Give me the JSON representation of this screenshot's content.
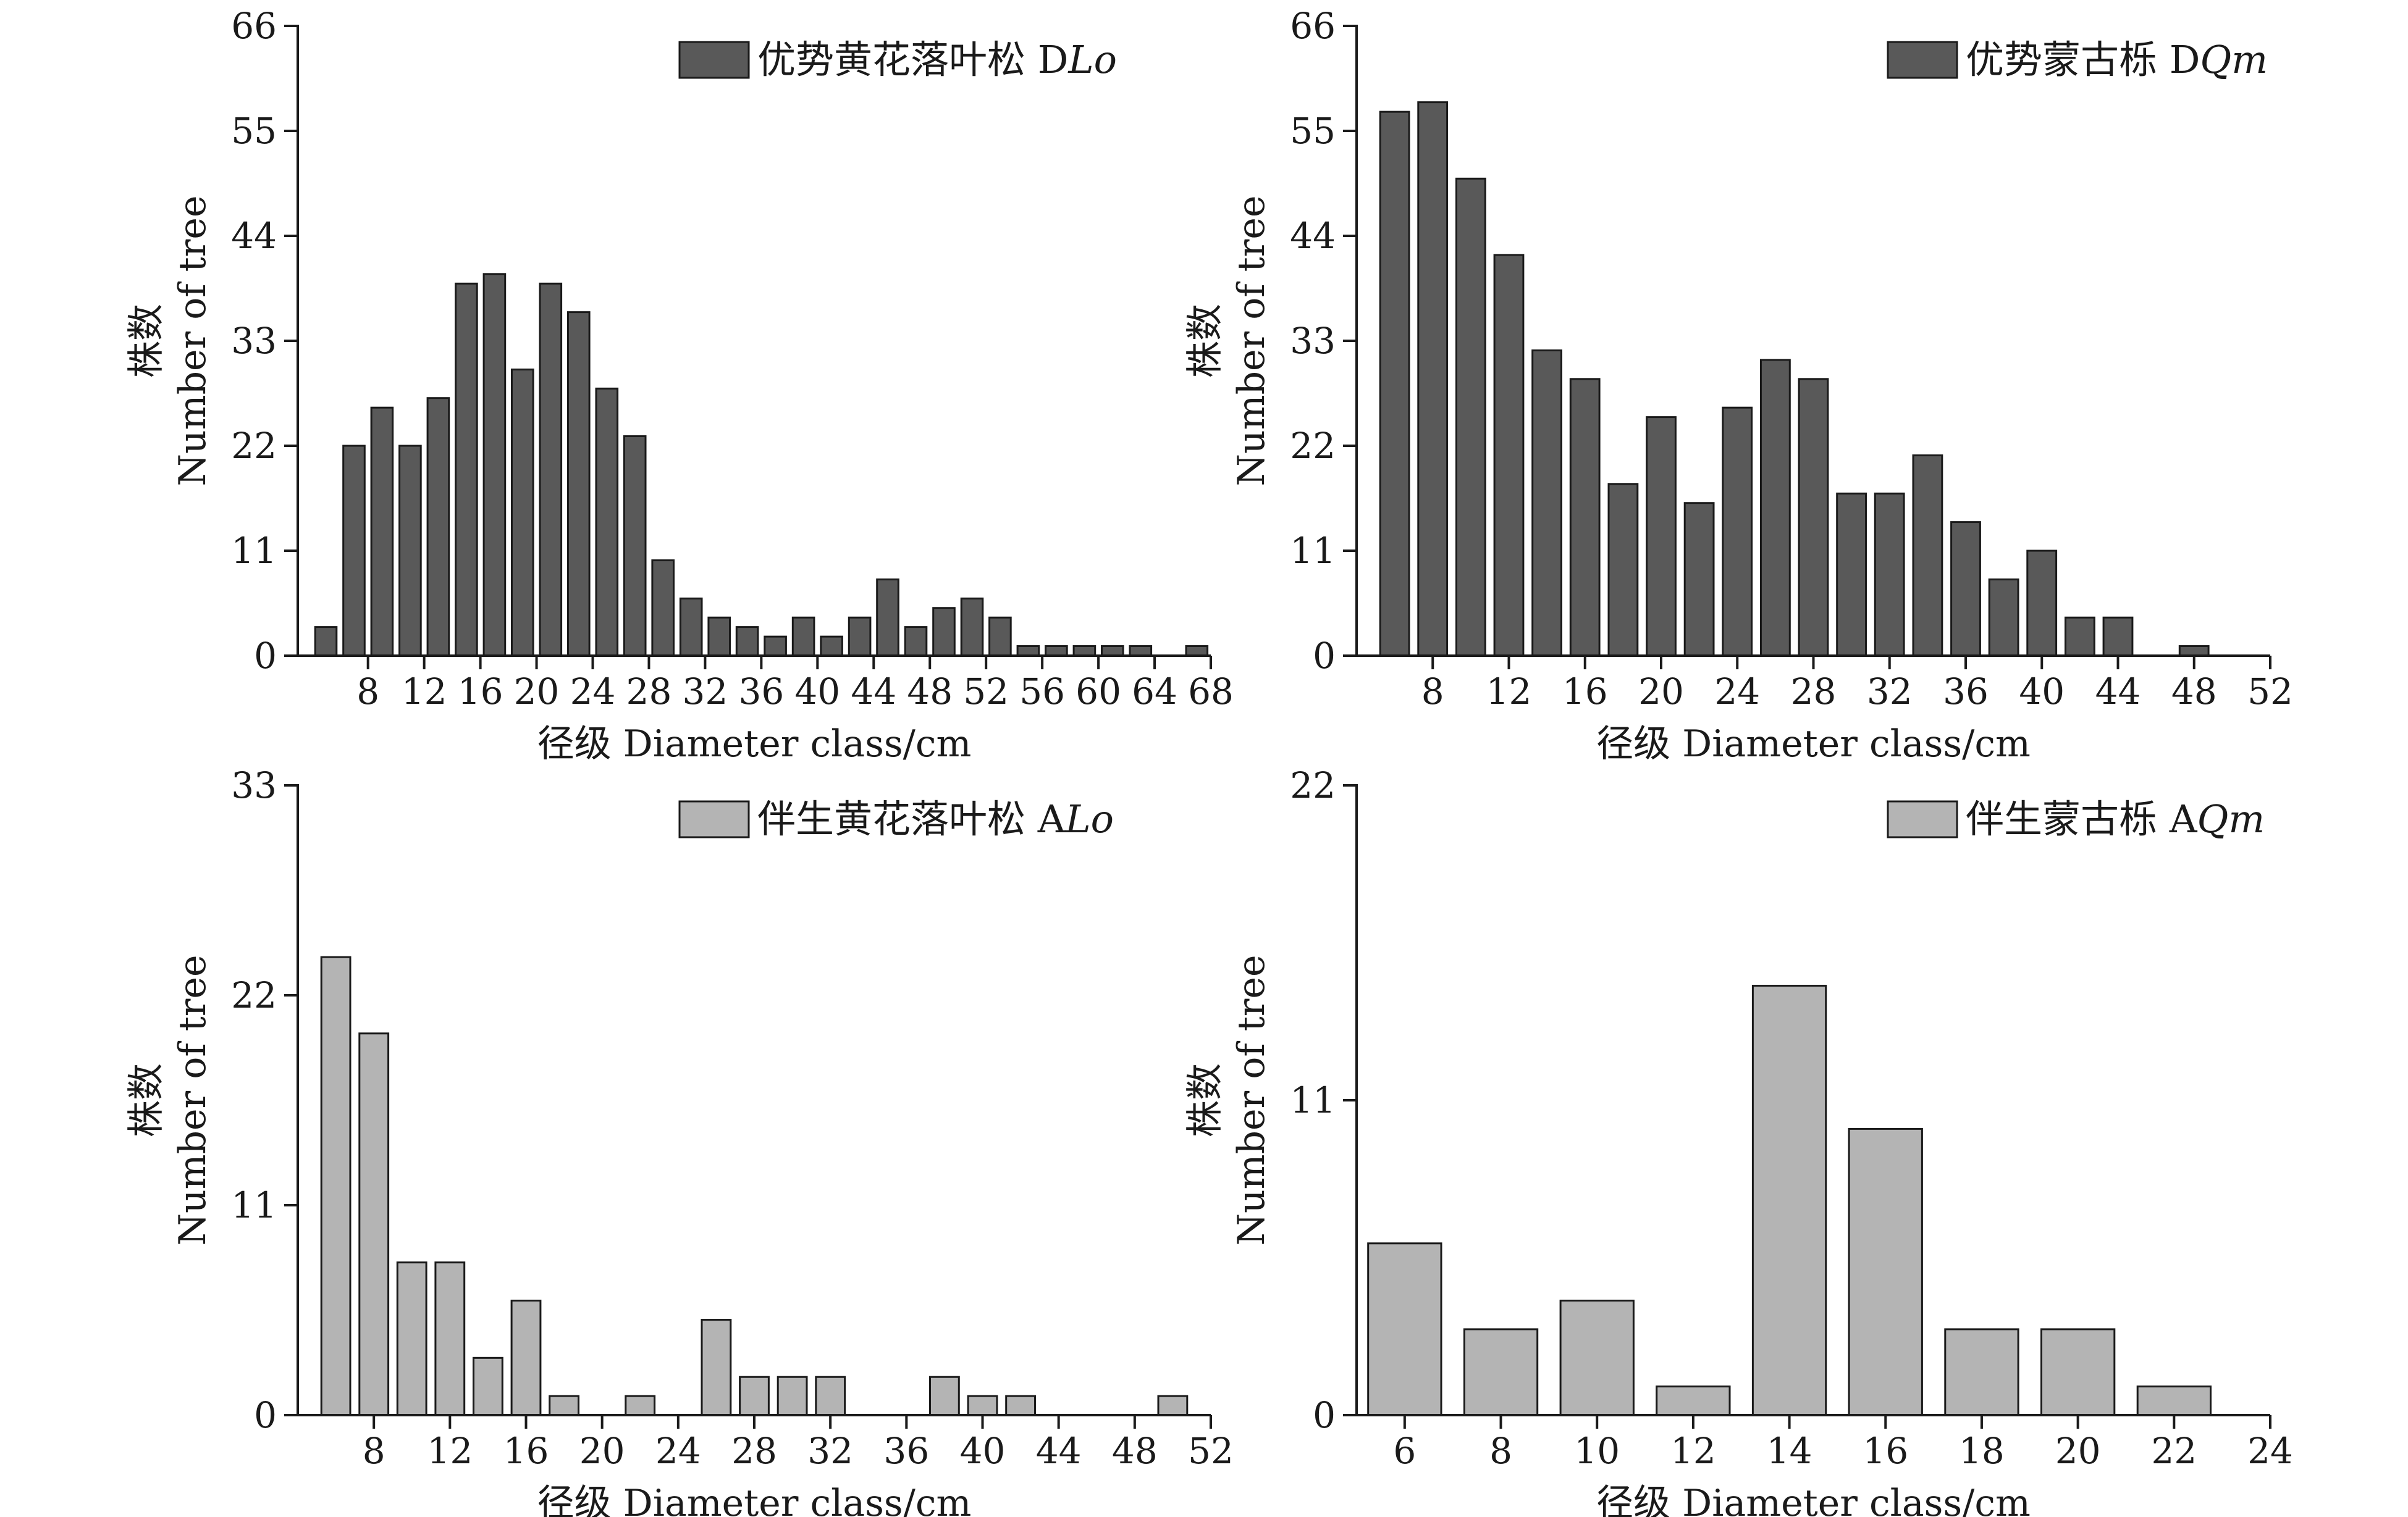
{
  "chart_data": [
    {
      "type": "bar",
      "id": "dlo",
      "legend": {
        "label": "优势黄花落叶松 D",
        "italic": "Lo"
      },
      "xlabel": "径级 Diameter class/cm",
      "ylabel_cn": "株数",
      "ylabel_en": "Number of tree",
      "ylim": [
        0,
        66
      ],
      "yticks": [
        0,
        11,
        22,
        33,
        44,
        55,
        66
      ],
      "xlim": [
        3,
        68
      ],
      "xticks": [
        8,
        12,
        16,
        20,
        24,
        28,
        32,
        36,
        40,
        44,
        48,
        52,
        56,
        60,
        64,
        68
      ],
      "color": "#595959",
      "x": [
        5,
        7,
        9,
        11,
        13,
        15,
        17,
        19,
        21,
        23,
        25,
        27,
        29,
        31,
        33,
        35,
        37,
        39,
        41,
        43,
        45,
        47,
        49,
        51,
        53,
        55,
        57,
        59,
        61,
        63,
        67
      ],
      "values": [
        3,
        22,
        26,
        22,
        27,
        39,
        40,
        30,
        39,
        36,
        28,
        23,
        10,
        6,
        4,
        3,
        2,
        4,
        2,
        4,
        8,
        3,
        5,
        6,
        4,
        1,
        1,
        1,
        1,
        1,
        1
      ]
    },
    {
      "type": "bar",
      "id": "dqm",
      "legend": {
        "label": "优势蒙古栎 D",
        "italic": "Qm"
      },
      "xlabel": "径级 Diameter class/cm",
      "ylabel_cn": "株数",
      "ylabel_en": "Number of tree",
      "ylim": [
        0,
        66
      ],
      "yticks": [
        0,
        11,
        22,
        33,
        44,
        55,
        66
      ],
      "xlim": [
        4,
        52
      ],
      "xticks": [
        8,
        12,
        16,
        20,
        24,
        28,
        32,
        36,
        40,
        44,
        48,
        52
      ],
      "color": "#595959",
      "x": [
        6,
        8,
        10,
        12,
        14,
        16,
        18,
        20,
        22,
        24,
        26,
        28,
        30,
        32,
        34,
        36,
        38,
        40,
        42,
        44,
        48
      ],
      "values": [
        57,
        58,
        50,
        42,
        32,
        29,
        18,
        25,
        16,
        26,
        31,
        29,
        17,
        17,
        21,
        14,
        8,
        11,
        4,
        4,
        1
      ]
    },
    {
      "type": "bar",
      "id": "alo",
      "legend": {
        "label": "伴生黄花落叶松 A",
        "italic": "Lo"
      },
      "xlabel": "径级 Diameter class/cm",
      "ylabel_cn": "株数",
      "ylabel_en": "Number of tree",
      "ylim": [
        0,
        33
      ],
      "yticks": [
        0,
        11,
        22,
        33
      ],
      "xlim": [
        4,
        52
      ],
      "xticks": [
        8,
        12,
        16,
        20,
        24,
        28,
        32,
        36,
        40,
        44,
        48,
        52
      ],
      "color": "#b4b4b4",
      "x": [
        6,
        8,
        10,
        12,
        14,
        16,
        18,
        22,
        26,
        28,
        30,
        32,
        38,
        40,
        42,
        50
      ],
      "values": [
        24,
        20,
        8,
        8,
        3,
        6,
        1,
        1,
        5,
        2,
        2,
        2,
        2,
        1,
        1,
        1
      ]
    },
    {
      "type": "bar",
      "id": "aqm",
      "legend": {
        "label": "伴生蒙古栎 A",
        "italic": "Qm"
      },
      "xlabel": "径级 Diameter class/cm",
      "ylabel_cn": "株数",
      "ylabel_en": "Number of tree",
      "ylim": [
        0,
        22
      ],
      "yticks": [
        0,
        11,
        22
      ],
      "xlim": [
        5,
        24
      ],
      "xticks": [
        6,
        8,
        10,
        12,
        14,
        16,
        18,
        20,
        22,
        24
      ],
      "color": "#b4b4b4",
      "x": [
        6,
        8,
        10,
        12,
        14,
        16,
        18,
        20,
        22
      ],
      "values": [
        6,
        3,
        4,
        1,
        15,
        10,
        3,
        3,
        1
      ]
    }
  ]
}
